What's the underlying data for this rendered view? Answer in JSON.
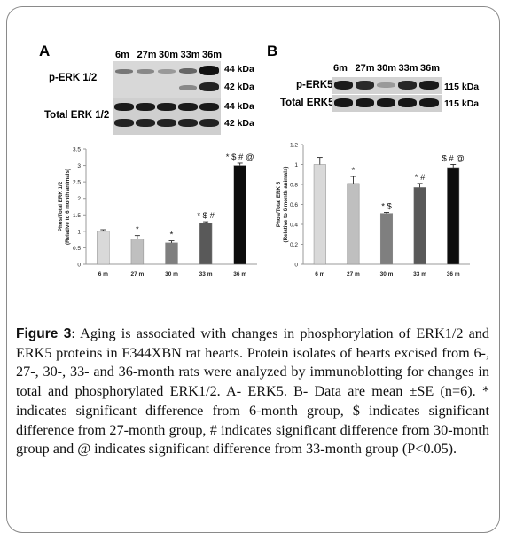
{
  "figure": {
    "panel_a": {
      "letter": "A",
      "lanes": [
        "6m",
        "27m",
        "30m",
        "33m",
        "36m"
      ],
      "rows": [
        {
          "label": "p-ERK 1/2",
          "kda": [
            "44 kDa",
            "42 kDa"
          ]
        },
        {
          "label": "Total ERK 1/2",
          "kda": [
            "44 kDa",
            "42 kDa"
          ]
        }
      ]
    },
    "panel_b": {
      "letter": "B",
      "lanes": [
        "6m",
        "27m",
        "30m",
        "33m",
        "36m"
      ],
      "rows": [
        {
          "label": "p-ERK5",
          "kda": [
            "115 kDa"
          ]
        },
        {
          "label": "Total ERK5",
          "kda": [
            "115 kDa"
          ]
        }
      ]
    },
    "caption": {
      "label": "Figure 3",
      "text": ": Aging is associated with changes in phosphorylation of ERK1/2 and ERK5 proteins in F344XBN rat hearts. Protein isolates of hearts excised from 6-, 27-, 30-, 33- and 36-month rats were analyzed by immunoblotting for changes in total and phosphorylated ERK1/2. A- ERK5. B- Data are mean ±SE (n=6). * indicates significant difference from 6-month group, $ indicates significant difference from 27-month group, # indicates significant difference from 30-month group and @ indicates significant difference from 33-month group (P<0.05)."
    }
  },
  "chart_data": [
    {
      "type": "bar",
      "categories": [
        "6 m",
        "27 m",
        "30 m",
        "33 m",
        "36 m"
      ],
      "values": [
        1.0,
        0.77,
        0.65,
        1.25,
        3.0
      ],
      "errors": [
        0.05,
        0.1,
        0.06,
        0.04,
        0.07
      ],
      "annotations": [
        "",
        "*",
        "*",
        "* $ #",
        "* $ # @"
      ],
      "ylabel": "Phos/Total ERK 1/2",
      "ylabel2": "(Relative to 6 month animals)",
      "ylim": [
        0,
        3.5
      ],
      "yticks": [
        "0",
        "0.5",
        "1",
        "1.5",
        "2",
        "2.5",
        "3",
        "3.5"
      ],
      "colors": [
        "#d9d9d9",
        "#bfbfbf",
        "#7f7f7f",
        "#595959",
        "#0d0d0d"
      ]
    },
    {
      "type": "bar",
      "categories": [
        "6 m",
        "27 m",
        "30 m",
        "33 m",
        "36 m"
      ],
      "values": [
        1.0,
        0.81,
        0.51,
        0.77,
        0.97
      ],
      "errors": [
        0.07,
        0.07,
        0.01,
        0.04,
        0.03
      ],
      "annotations": [
        "",
        "*",
        "* $",
        "* #",
        "$ # @"
      ],
      "ylabel": "Phos/Total ERK 5",
      "ylabel2": "(Relative to 6 month animals)",
      "ylim": [
        0,
        1.2
      ],
      "yticks": [
        "0",
        "0.2",
        "0.4",
        "0.6",
        "0.8",
        "1",
        "1.2"
      ],
      "colors": [
        "#d9d9d9",
        "#bfbfbf",
        "#7f7f7f",
        "#595959",
        "#0d0d0d"
      ]
    }
  ]
}
